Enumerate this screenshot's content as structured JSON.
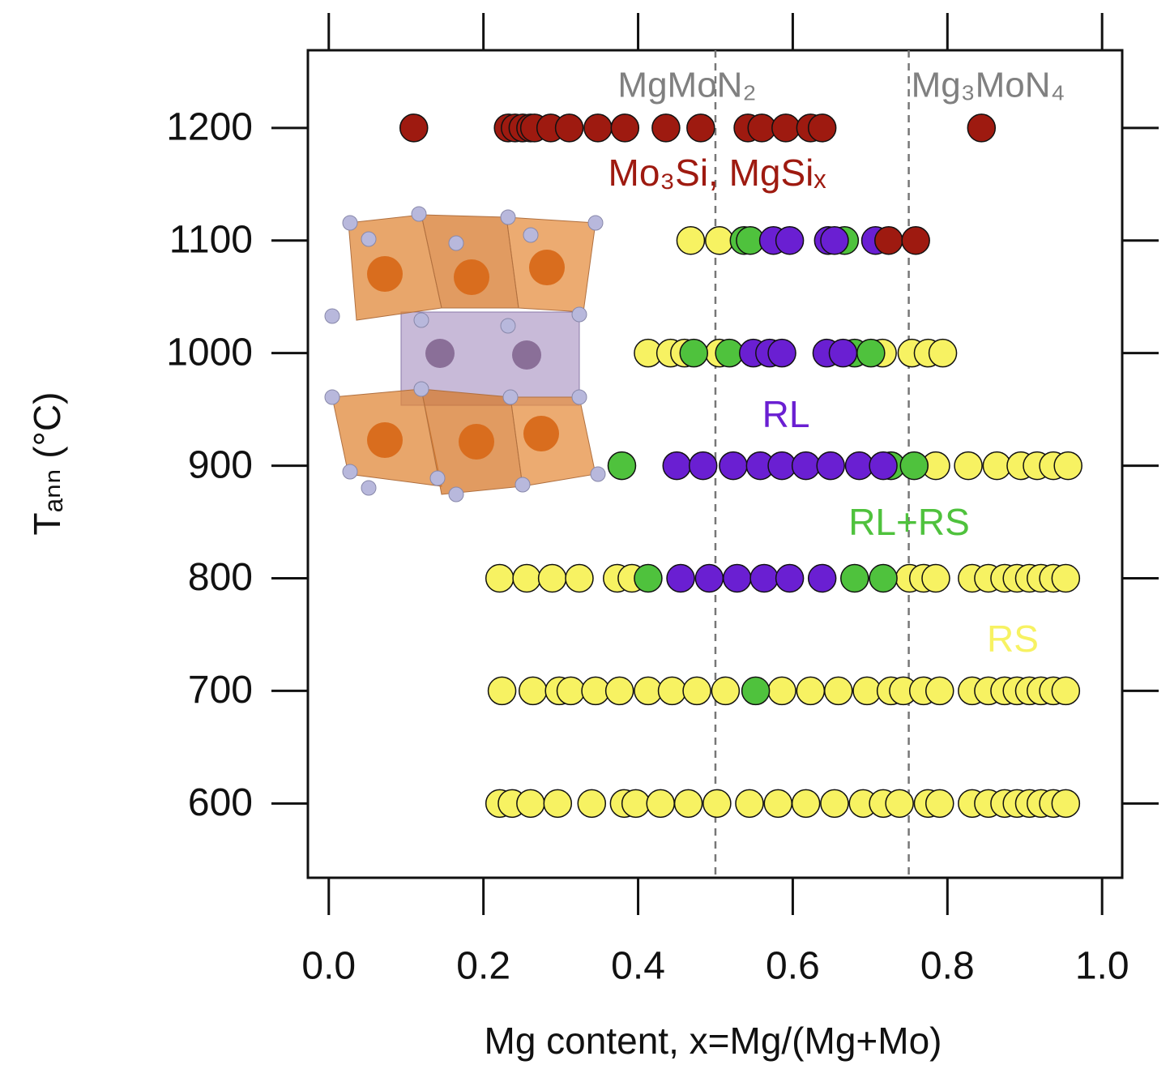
{
  "chart_data": {
    "type": "scatter",
    "xlabel": "Mg content, x=Mg/(Mg+Mo)",
    "ylabel": "Tₐₙₙ (°C)",
    "xlim": [
      -0.027,
      1.026
    ],
    "ylim": [
      534,
      1269
    ],
    "xticks": [
      {
        "value": 0,
        "label": "0.0"
      },
      0.2,
      0.4,
      0.6,
      0.8,
      {
        "value": 1,
        "label": "1.0"
      }
    ],
    "yticks": [
      600,
      700,
      800,
      900,
      1000,
      1100,
      1200
    ],
    "vlines": [
      {
        "x": 0.5,
        "label": "MgMoN₂"
      },
      {
        "x": 0.75,
        "label": "Mg₃MoN₄"
      }
    ],
    "series": [
      {
        "name": "Mo₃Si, MgSiₓ",
        "color": "#9e1a10",
        "x": [
          0.11,
          0.232,
          0.241,
          0.251,
          0.261,
          0.266,
          0.287,
          0.311,
          0.348,
          0.383,
          0.436,
          0.481,
          0.542,
          0.56,
          0.591,
          0.623,
          0.638,
          0.844,
          0.724,
          0.759
        ],
        "values": [
          1200,
          1200,
          1200,
          1200,
          1200,
          1200,
          1200,
          1200,
          1200,
          1200,
          1200,
          1200,
          1200,
          1200,
          1200,
          1200,
          1200,
          1200,
          1100,
          1100
        ]
      },
      {
        "name": "RL",
        "color": "#6a1fd2",
        "x": [
          0.575,
          0.596,
          0.646,
          0.654,
          0.707,
          0.549,
          0.57,
          0.586,
          0.644,
          0.665,
          0.45,
          0.484,
          0.523,
          0.558,
          0.586,
          0.617,
          0.649,
          0.686,
          0.717,
          0.455,
          0.492,
          0.528,
          0.563,
          0.596,
          0.638
        ],
        "values": [
          1100,
          1100,
          1100,
          1100,
          1100,
          1000,
          1000,
          1000,
          1000,
          1000,
          900,
          900,
          900,
          900,
          900,
          900,
          900,
          900,
          900,
          800,
          800,
          800,
          800,
          800,
          800
        ]
      },
      {
        "name": "RL+RS",
        "color": "#4fc23d",
        "x": [
          0.537,
          0.545,
          0.667,
          0.472,
          0.518,
          0.68,
          0.701,
          0.379,
          0.727,
          0.757,
          0.413,
          0.68,
          0.717,
          0.552
        ],
        "values": [
          1100,
          1100,
          1100,
          1000,
          1000,
          1000,
          1000,
          900,
          900,
          900,
          800,
          800,
          800,
          700
        ]
      },
      {
        "name": "RS",
        "color": "#f7f262",
        "x": [
          0.468,
          0.505,
          0.413,
          0.442,
          0.46,
          0.505,
          0.716,
          0.754,
          0.775,
          0.794,
          0.785,
          0.827,
          0.864,
          0.895,
          0.916,
          0.937,
          0.956,
          0.221,
          0.256,
          0.289,
          0.324,
          0.373,
          0.392,
          0.751,
          0.769,
          0.785,
          0.832,
          0.853,
          0.874,
          0.89,
          0.906,
          0.921,
          0.937,
          0.953,
          0.224,
          0.264,
          0.298,
          0.313,
          0.345,
          0.376,
          0.413,
          0.444,
          0.476,
          0.513,
          0.586,
          0.623,
          0.659,
          0.696,
          0.727,
          0.743,
          0.769,
          0.79,
          0.832,
          0.853,
          0.874,
          0.89,
          0.906,
          0.921,
          0.937,
          0.953,
          0.221,
          0.237,
          0.261,
          0.296,
          0.34,
          0.382,
          0.397,
          0.429,
          0.465,
          0.502,
          0.544,
          0.581,
          0.617,
          0.654,
          0.691,
          0.717,
          0.738,
          0.775,
          0.79,
          0.832,
          0.853,
          0.874,
          0.89,
          0.906,
          0.921,
          0.937,
          0.953
        ],
        "values": [
          1100,
          1100,
          1000,
          1000,
          1000,
          1000,
          1000,
          1000,
          1000,
          1000,
          900,
          900,
          900,
          900,
          900,
          900,
          900,
          800,
          800,
          800,
          800,
          800,
          800,
          800,
          800,
          800,
          800,
          800,
          800,
          800,
          800,
          800,
          800,
          800,
          700,
          700,
          700,
          700,
          700,
          700,
          700,
          700,
          700,
          700,
          700,
          700,
          700,
          700,
          700,
          700,
          700,
          700,
          700,
          700,
          700,
          700,
          700,
          700,
          700,
          700,
          600,
          600,
          600,
          600,
          600,
          600,
          600,
          600,
          600,
          600,
          600,
          600,
          600,
          600,
          600,
          600,
          600,
          600,
          600,
          600,
          600,
          600,
          600,
          600,
          600,
          600,
          600
        ]
      }
    ]
  }
}
